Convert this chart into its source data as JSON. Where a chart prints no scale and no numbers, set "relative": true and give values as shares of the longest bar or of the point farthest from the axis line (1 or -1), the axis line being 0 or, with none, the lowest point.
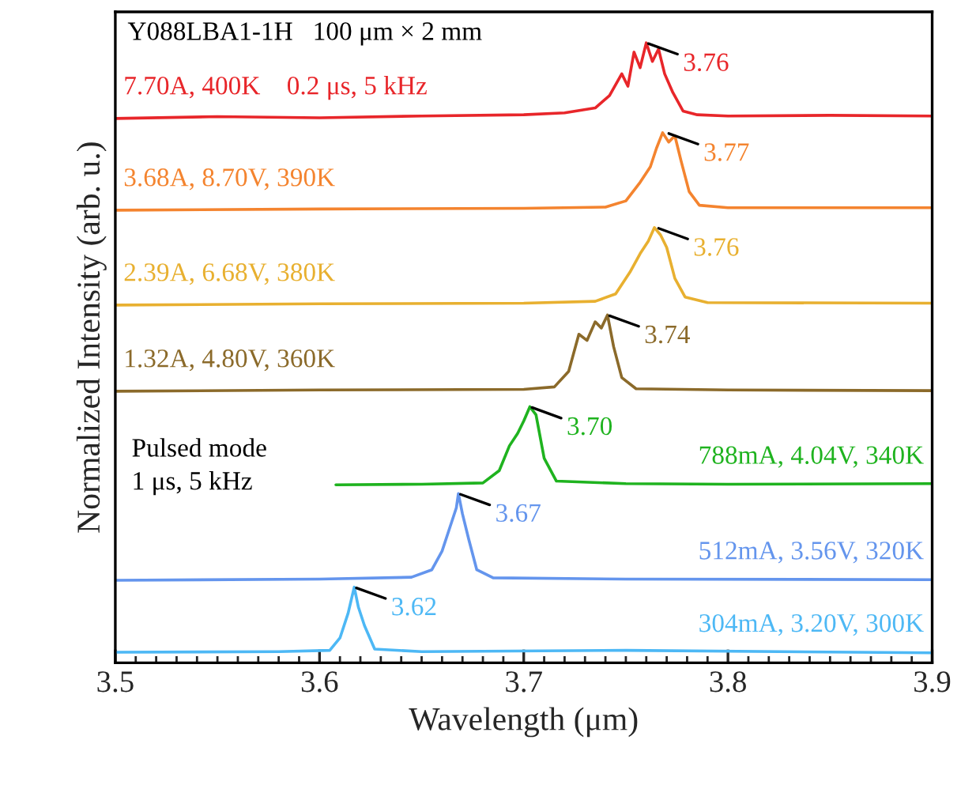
{
  "chart_data": {
    "type": "line",
    "title": "Y088LBA1-1H   100 μm × 2 mm",
    "xlabel": "Wavelength (μm)",
    "ylabel": "Normalized Intensity (arb. u.)",
    "relative": true,
    "legend": false,
    "grid": false,
    "xlim": [
      3.5,
      3.9
    ],
    "xticks": [
      3.5,
      3.6,
      3.7,
      3.8,
      3.9
    ],
    "series": [
      {
        "name": "7.70A, 400K    0.2 μs, 5 kHz",
        "color": "#e8262a",
        "x": [
          3.5,
          3.55,
          3.6,
          3.65,
          3.7,
          3.72,
          3.735,
          3.742,
          3.748,
          3.751,
          3.754,
          3.757,
          3.76,
          3.763,
          3.766,
          3.769,
          3.773,
          3.778,
          3.785,
          3.8,
          3.85,
          3.9
        ],
        "values": [
          0.878,
          0.881,
          0.879,
          0.882,
          0.884,
          0.887,
          0.895,
          0.915,
          0.95,
          0.93,
          0.985,
          0.96,
          1.0,
          0.97,
          0.99,
          0.95,
          0.92,
          0.89,
          0.884,
          0.882,
          0.883,
          0.882
        ]
      },
      {
        "name": "3.68A, 8.70V, 390K",
        "color": "#f4842f",
        "x": [
          3.5,
          3.6,
          3.7,
          3.74,
          3.75,
          3.757,
          3.762,
          3.765,
          3.768,
          3.771,
          3.774,
          3.777,
          3.781,
          3.786,
          3.8,
          3.9
        ],
        "values": [
          0.73,
          0.732,
          0.733,
          0.735,
          0.745,
          0.775,
          0.8,
          0.83,
          0.855,
          0.84,
          0.85,
          0.81,
          0.76,
          0.738,
          0.734,
          0.734
        ]
      },
      {
        "name": "2.39A, 6.68V, 380K",
        "color": "#e8b030",
        "x": [
          3.5,
          3.6,
          3.7,
          3.735,
          3.745,
          3.752,
          3.757,
          3.761,
          3.764,
          3.767,
          3.77,
          3.774,
          3.779,
          3.79,
          3.9
        ],
        "values": [
          0.577,
          0.579,
          0.58,
          0.583,
          0.595,
          0.63,
          0.66,
          0.68,
          0.702,
          0.69,
          0.67,
          0.62,
          0.59,
          0.581,
          0.58
        ]
      },
      {
        "name": "1.32A, 4.80V, 360K",
        "color": "#8b6a2a",
        "x": [
          3.5,
          3.6,
          3.7,
          3.715,
          3.722,
          3.727,
          3.731,
          3.735,
          3.738,
          3.741,
          3.744,
          3.748,
          3.755,
          3.8,
          3.9
        ],
        "values": [
          0.438,
          0.44,
          0.441,
          0.445,
          0.47,
          0.53,
          0.52,
          0.55,
          0.54,
          0.561,
          0.51,
          0.46,
          0.442,
          0.44,
          0.439
        ]
      },
      {
        "name": "788mA, 4.04V, 340K",
        "color": "#1fb31f",
        "x": [
          3.608,
          3.65,
          3.68,
          3.688,
          3.693,
          3.697,
          3.7,
          3.703,
          3.706,
          3.71,
          3.716,
          3.75,
          3.8,
          3.9
        ],
        "values": [
          0.287,
          0.288,
          0.29,
          0.31,
          0.35,
          0.37,
          0.39,
          0.413,
          0.4,
          0.33,
          0.293,
          0.289,
          0.288,
          0.289
        ]
      },
      {
        "name": "512mA, 3.56V, 320K",
        "color": "#6495ed",
        "x": [
          3.5,
          3.6,
          3.645,
          3.655,
          3.66,
          3.664,
          3.667,
          3.668,
          3.67,
          3.673,
          3.677,
          3.685,
          3.75,
          3.9
        ],
        "values": [
          0.133,
          0.135,
          0.138,
          0.15,
          0.18,
          0.22,
          0.25,
          0.273,
          0.24,
          0.2,
          0.15,
          0.137,
          0.135,
          0.134
        ]
      },
      {
        "name": "304mA, 3.20V, 300K",
        "color": "#4db8f5",
        "x": [
          3.5,
          3.58,
          3.605,
          3.61,
          3.614,
          3.617,
          3.619,
          3.622,
          3.627,
          3.65,
          3.75,
          3.9
        ],
        "values": [
          0.017,
          0.018,
          0.02,
          0.04,
          0.08,
          0.122,
          0.09,
          0.06,
          0.022,
          0.018,
          0.02,
          0.016
        ]
      }
    ],
    "annotations": [
      {
        "text": "3.76",
        "x": 3.76,
        "y": 1.0
      },
      {
        "text": "3.77",
        "x": 3.77,
        "y": 0.855
      },
      {
        "text": "3.76",
        "x": 3.765,
        "y": 0.702
      },
      {
        "text": "3.74",
        "x": 3.741,
        "y": 0.561
      },
      {
        "text": "3.70",
        "x": 3.703,
        "y": 0.413
      },
      {
        "text": "3.67",
        "x": 3.668,
        "y": 0.273
      },
      {
        "text": "3.62",
        "x": 3.617,
        "y": 0.122
      },
      "Pulsed mode\n1 μs, 5 kHz"
    ]
  }
}
